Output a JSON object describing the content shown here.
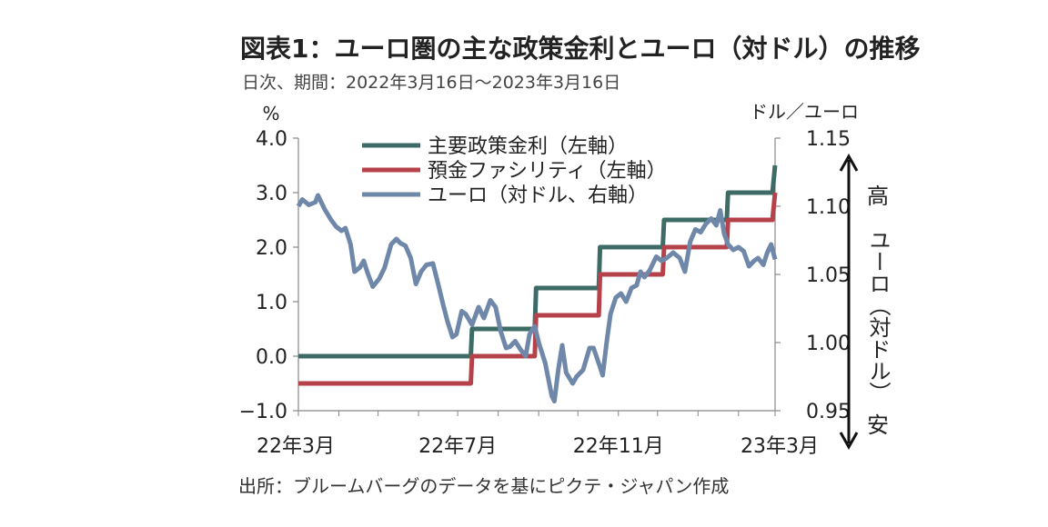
{
  "title": "図表1：ユーロ圏の主な政策金利とユーロ（対ドル）の推移",
  "subtitle": "日次、期間：2022年3月16日～2023年3月16日",
  "source": "出所：ブルームバーグのデータを基にピクテ・ジャパン作成",
  "chart_data": {
    "type": "line",
    "y_left": {
      "unit": "%",
      "range": [
        -1.0,
        4.0
      ],
      "ticks": [
        "4.0",
        "3.0",
        "2.0",
        "1.0",
        "0.0",
        "-1.0"
      ]
    },
    "y_right": {
      "unit": "ドル／ユーロ",
      "range": [
        0.95,
        1.15
      ],
      "ticks": [
        "1.15",
        "1.10",
        "1.05",
        "1.00",
        "0.95"
      ]
    },
    "x_ticks": [
      "22年3月",
      "22年7月",
      "22年11月",
      "23年3月"
    ],
    "right_annotation": {
      "high": "高",
      "label": "ユーロ（対ドル）",
      "low": "安"
    },
    "series": [
      {
        "name": "主要政策金利（左軸）",
        "color": "#3d6b66",
        "axis": "left",
        "points": [
          [
            "2022-03-16",
            0.0
          ],
          [
            "2022-07-26",
            0.0
          ],
          [
            "2022-07-27",
            0.5
          ],
          [
            "2022-09-13",
            0.5
          ],
          [
            "2022-09-14",
            1.25
          ],
          [
            "2022-11-01",
            1.25
          ],
          [
            "2022-11-02",
            2.0
          ],
          [
            "2022-12-20",
            2.0
          ],
          [
            "2022-12-21",
            2.5
          ],
          [
            "2023-02-07",
            2.5
          ],
          [
            "2023-02-08",
            3.0
          ],
          [
            "2023-03-14",
            3.0
          ],
          [
            "2023-03-16",
            3.5
          ]
        ]
      },
      {
        "name": "預金ファシリティ（左軸）",
        "color": "#b5424a",
        "axis": "left",
        "points": [
          [
            "2022-03-16",
            -0.5
          ],
          [
            "2022-07-26",
            -0.5
          ],
          [
            "2022-07-27",
            0.0
          ],
          [
            "2022-09-13",
            0.0
          ],
          [
            "2022-09-14",
            0.75
          ],
          [
            "2022-11-01",
            0.75
          ],
          [
            "2022-11-02",
            1.5
          ],
          [
            "2022-12-20",
            1.5
          ],
          [
            "2022-12-21",
            2.0
          ],
          [
            "2023-02-07",
            2.0
          ],
          [
            "2023-02-08",
            2.5
          ],
          [
            "2023-03-14",
            2.5
          ],
          [
            "2023-03-16",
            3.0
          ]
        ]
      },
      {
        "name": "ユーロ（対ドル、右軸）",
        "color": "#6f88aa",
        "axis": "right",
        "points": [
          [
            "2022-03-16",
            1.1
          ],
          [
            "2022-03-19",
            1.105
          ],
          [
            "2022-03-24",
            1.101
          ],
          [
            "2022-03-29",
            1.103
          ],
          [
            "2022-03-31",
            1.108
          ],
          [
            "2022-04-05",
            1.098
          ],
          [
            "2022-04-10",
            1.09
          ],
          [
            "2022-04-14",
            1.085
          ],
          [
            "2022-04-18",
            1.082
          ],
          [
            "2022-04-21",
            1.084
          ],
          [
            "2022-04-25",
            1.072
          ],
          [
            "2022-04-28",
            1.052
          ],
          [
            "2022-05-02",
            1.055
          ],
          [
            "2022-05-05",
            1.06
          ],
          [
            "2022-05-08",
            1.051
          ],
          [
            "2022-05-12",
            1.041
          ],
          [
            "2022-05-17",
            1.047
          ],
          [
            "2022-05-21",
            1.055
          ],
          [
            "2022-05-26",
            1.072
          ],
          [
            "2022-05-30",
            1.076
          ],
          [
            "2022-06-02",
            1.073
          ],
          [
            "2022-06-06",
            1.071
          ],
          [
            "2022-06-10",
            1.062
          ],
          [
            "2022-06-14",
            1.043
          ],
          [
            "2022-06-18",
            1.052
          ],
          [
            "2022-06-22",
            1.057
          ],
          [
            "2022-06-27",
            1.058
          ],
          [
            "2022-07-01",
            1.043
          ],
          [
            "2022-07-05",
            1.027
          ],
          [
            "2022-07-08",
            1.016
          ],
          [
            "2022-07-12",
            1.004
          ],
          [
            "2022-07-15",
            1.006
          ],
          [
            "2022-07-19",
            1.023
          ],
          [
            "2022-07-22",
            1.021
          ],
          [
            "2022-07-27",
            1.013
          ],
          [
            "2022-08-01",
            1.026
          ],
          [
            "2022-08-05",
            1.018
          ],
          [
            "2022-08-10",
            1.031
          ],
          [
            "2022-08-14",
            1.026
          ],
          [
            "2022-08-18",
            1.008
          ],
          [
            "2022-08-22",
            0.996
          ],
          [
            "2022-08-25",
            0.997
          ],
          [
            "2022-08-29",
            1.001
          ],
          [
            "2022-09-02",
            0.995
          ],
          [
            "2022-09-06",
            0.99
          ],
          [
            "2022-09-09",
            1.006
          ],
          [
            "2022-09-13",
            1.012
          ],
          [
            "2022-09-16",
            1.0
          ],
          [
            "2022-09-21",
            0.985
          ],
          [
            "2022-09-26",
            0.961
          ],
          [
            "2022-09-28",
            0.957
          ],
          [
            "2022-10-01",
            0.98
          ],
          [
            "2022-10-04",
            0.998
          ],
          [
            "2022-10-07",
            0.978
          ],
          [
            "2022-10-12",
            0.97
          ],
          [
            "2022-10-15",
            0.975
          ],
          [
            "2022-10-20",
            0.98
          ],
          [
            "2022-10-25",
            0.996
          ],
          [
            "2022-10-28",
            0.996
          ],
          [
            "2022-11-02",
            0.982
          ],
          [
            "2022-11-04",
            0.976
          ],
          [
            "2022-11-07",
            1.0
          ],
          [
            "2022-11-10",
            1.021
          ],
          [
            "2022-11-14",
            1.033
          ],
          [
            "2022-11-18",
            1.036
          ],
          [
            "2022-11-22",
            1.03
          ],
          [
            "2022-11-26",
            1.04
          ],
          [
            "2022-11-30",
            1.042
          ],
          [
            "2022-12-03",
            1.052
          ],
          [
            "2022-12-06",
            1.048
          ],
          [
            "2022-12-10",
            1.053
          ],
          [
            "2022-12-15",
            1.063
          ],
          [
            "2022-12-19",
            1.06
          ],
          [
            "2022-12-23",
            1.062
          ],
          [
            "2022-12-28",
            1.066
          ],
          [
            "2023-01-02",
            1.062
          ],
          [
            "2023-01-06",
            1.052
          ],
          [
            "2023-01-10",
            1.074
          ],
          [
            "2023-01-14",
            1.083
          ],
          [
            "2023-01-18",
            1.081
          ],
          [
            "2023-01-22",
            1.087
          ],
          [
            "2023-01-26",
            1.091
          ],
          [
            "2023-01-30",
            1.086
          ],
          [
            "2023-02-02",
            1.097
          ],
          [
            "2023-02-05",
            1.08
          ],
          [
            "2023-02-08",
            1.072
          ],
          [
            "2023-02-12",
            1.068
          ],
          [
            "2023-02-16",
            1.07
          ],
          [
            "2023-02-20",
            1.067
          ],
          [
            "2023-02-24",
            1.056
          ],
          [
            "2023-02-28",
            1.06
          ],
          [
            "2023-03-03",
            1.062
          ],
          [
            "2023-03-07",
            1.057
          ],
          [
            "2023-03-10",
            1.066
          ],
          [
            "2023-03-13",
            1.072
          ],
          [
            "2023-03-16",
            1.061
          ]
        ]
      }
    ],
    "x_range": [
      "2022-03-16",
      "2023-03-16"
    ],
    "grid": false,
    "legend_position": "top-center"
  }
}
